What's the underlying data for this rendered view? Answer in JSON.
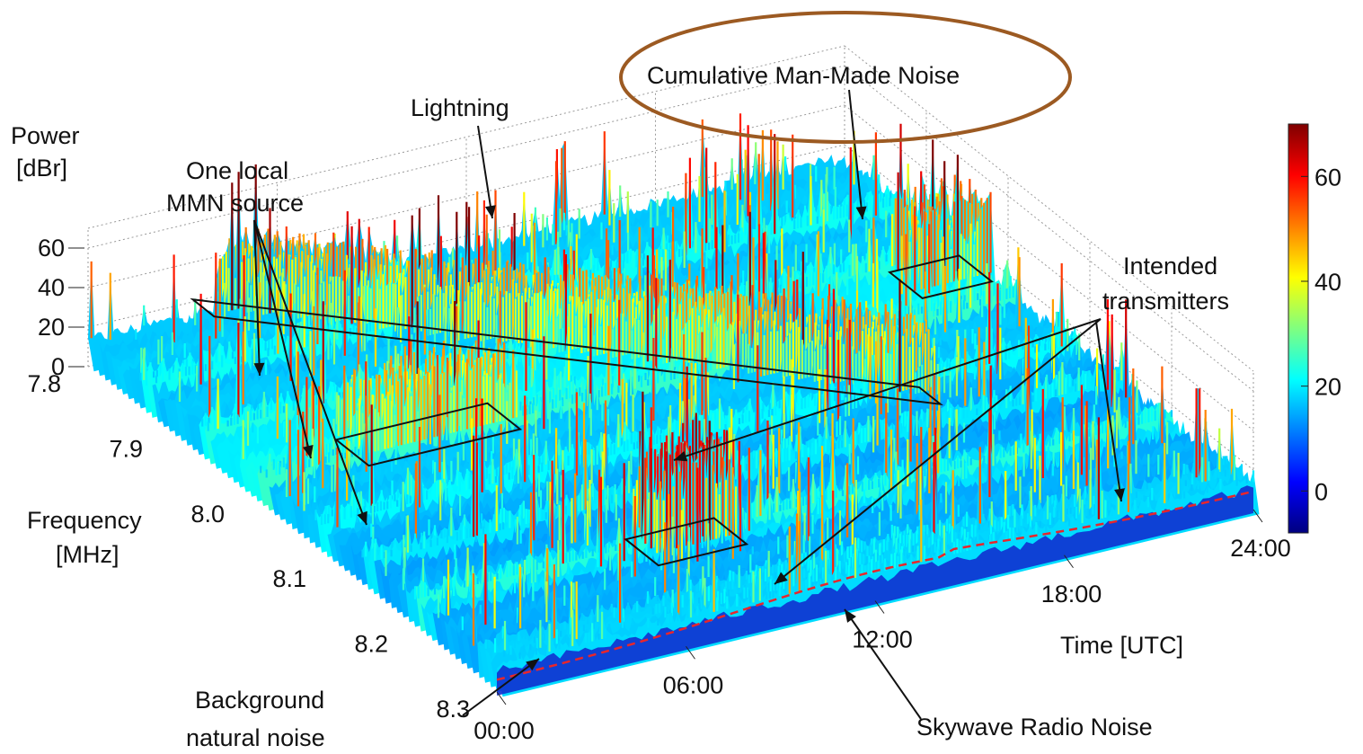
{
  "chart_data": {
    "type": "surface3d",
    "title": "",
    "axes": {
      "z": {
        "label_line1": "Power",
        "label_line2": "[dBr]",
        "ticks": [
          0,
          20,
          40,
          60
        ],
        "range": [
          0,
          70
        ]
      },
      "y": {
        "label_line1": "Frequency",
        "label_line2": "[MHz]",
        "ticks": [
          "7.8",
          "7.9",
          "8.0",
          "8.1",
          "8.2",
          "8.3"
        ],
        "range": [
          7.8,
          8.3
        ]
      },
      "x": {
        "label": "Time [UTC]",
        "ticks": [
          "00:00",
          "06:00",
          "12:00",
          "18:00",
          "24:00"
        ],
        "range_hours": [
          0,
          24
        ]
      }
    },
    "colorbar": {
      "ticks": [
        0,
        20,
        40,
        60
      ],
      "range": [
        -8,
        70
      ],
      "colormap": "jet"
    },
    "annotations": [
      {
        "id": "cumulative",
        "text": "Cumulative Man-Made Noise",
        "circled": true,
        "circle_color": "#9c5a22"
      },
      {
        "id": "lightning",
        "text": "Lightning"
      },
      {
        "id": "mmn",
        "line1": "One local",
        "line2": "MMN source"
      },
      {
        "id": "intended",
        "line1": "Intended",
        "line2": "transmitters"
      },
      {
        "id": "background",
        "line1": "Background",
        "line2": "natural noise"
      },
      {
        "id": "skywave",
        "text": "Skywave Radio Noise"
      }
    ],
    "features": {
      "lightning_band": {
        "time_start_h": 4.0,
        "time_end_h": 19.0,
        "freq_start_mhz": 7.78,
        "freq_end_mhz": 8.09,
        "peak_dbr": 55
      },
      "transmitters": [
        {
          "time_start_h": 3.2,
          "time_end_h": 8.0,
          "freq_mhz": 8.0,
          "peak_dbr": 50
        },
        {
          "time_start_h": 7.2,
          "time_end_h": 10.0,
          "freq_mhz": 8.2,
          "peak_dbr": 65
        },
        {
          "time_start_h": 21.8,
          "time_end_h": 24.0,
          "freq_mhz": 7.96,
          "peak_dbr": 55
        }
      ],
      "mmn_lines_mhz": [
        7.87,
        7.94,
        8.01,
        8.08,
        8.14,
        8.2
      ],
      "skywave_curve": "noise floor raised around 12:00 (dashed red curve along the 8.3 MHz edge)",
      "floor_dbr": 10
    }
  }
}
